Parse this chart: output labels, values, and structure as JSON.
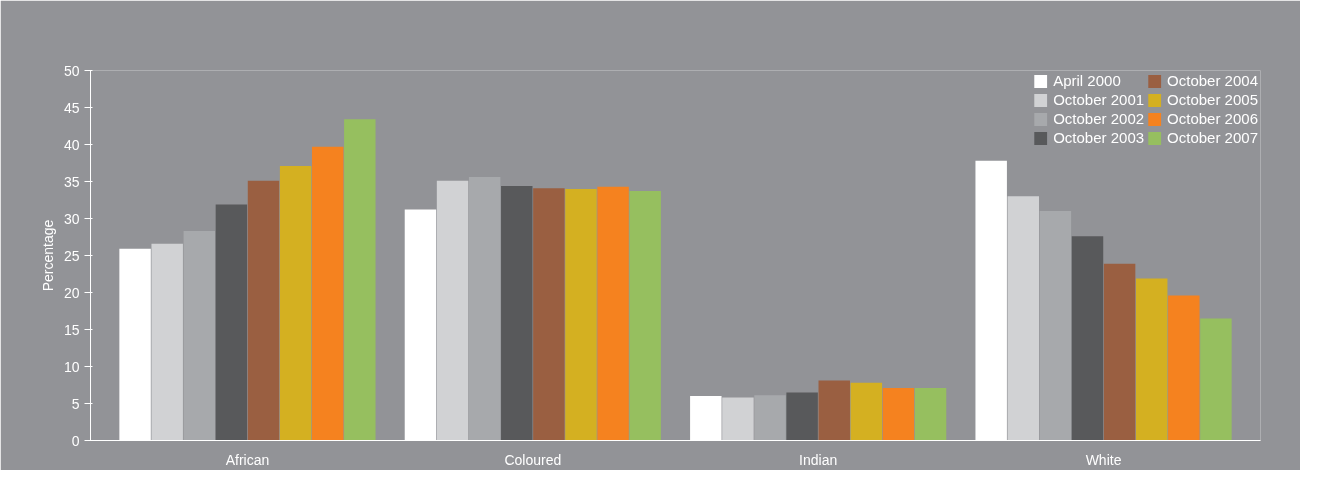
{
  "chart_data": {
    "type": "bar",
    "ylabel": "Percentage",
    "categories": [
      "African",
      "Coloured",
      "Indian",
      "White"
    ],
    "ylim": [
      0,
      50
    ],
    "yticks": [
      0,
      5,
      10,
      15,
      20,
      25,
      30,
      35,
      40,
      45,
      50
    ],
    "grid": false,
    "legend": "top right",
    "series": [
      {
        "name": "April 2000",
        "color": "#ffffff",
        "values": [
          25.9,
          31.2,
          6.0,
          37.8
        ]
      },
      {
        "name": "October 2001",
        "color": "#d1d2d4",
        "values": [
          26.6,
          35.1,
          5.8,
          33.0
        ]
      },
      {
        "name": "October 2002",
        "color": "#a7a9ac",
        "values": [
          28.3,
          35.6,
          6.1,
          31.0
        ]
      },
      {
        "name": "October 2003",
        "color": "#58595b",
        "values": [
          31.9,
          34.4,
          6.5,
          27.6
        ]
      },
      {
        "name": "October 2004",
        "color": "#9a5f41",
        "values": [
          35.1,
          34.1,
          8.1,
          23.9
        ]
      },
      {
        "name": "October 2005",
        "color": "#d4b021",
        "values": [
          37.1,
          34.0,
          7.8,
          21.9
        ]
      },
      {
        "name": "October 2006",
        "color": "#f5821f",
        "values": [
          39.7,
          34.3,
          7.1,
          19.6
        ]
      },
      {
        "name": "October 2007",
        "color": "#96bf5f",
        "values": [
          43.4,
          33.7,
          7.1,
          16.5
        ]
      }
    ]
  }
}
